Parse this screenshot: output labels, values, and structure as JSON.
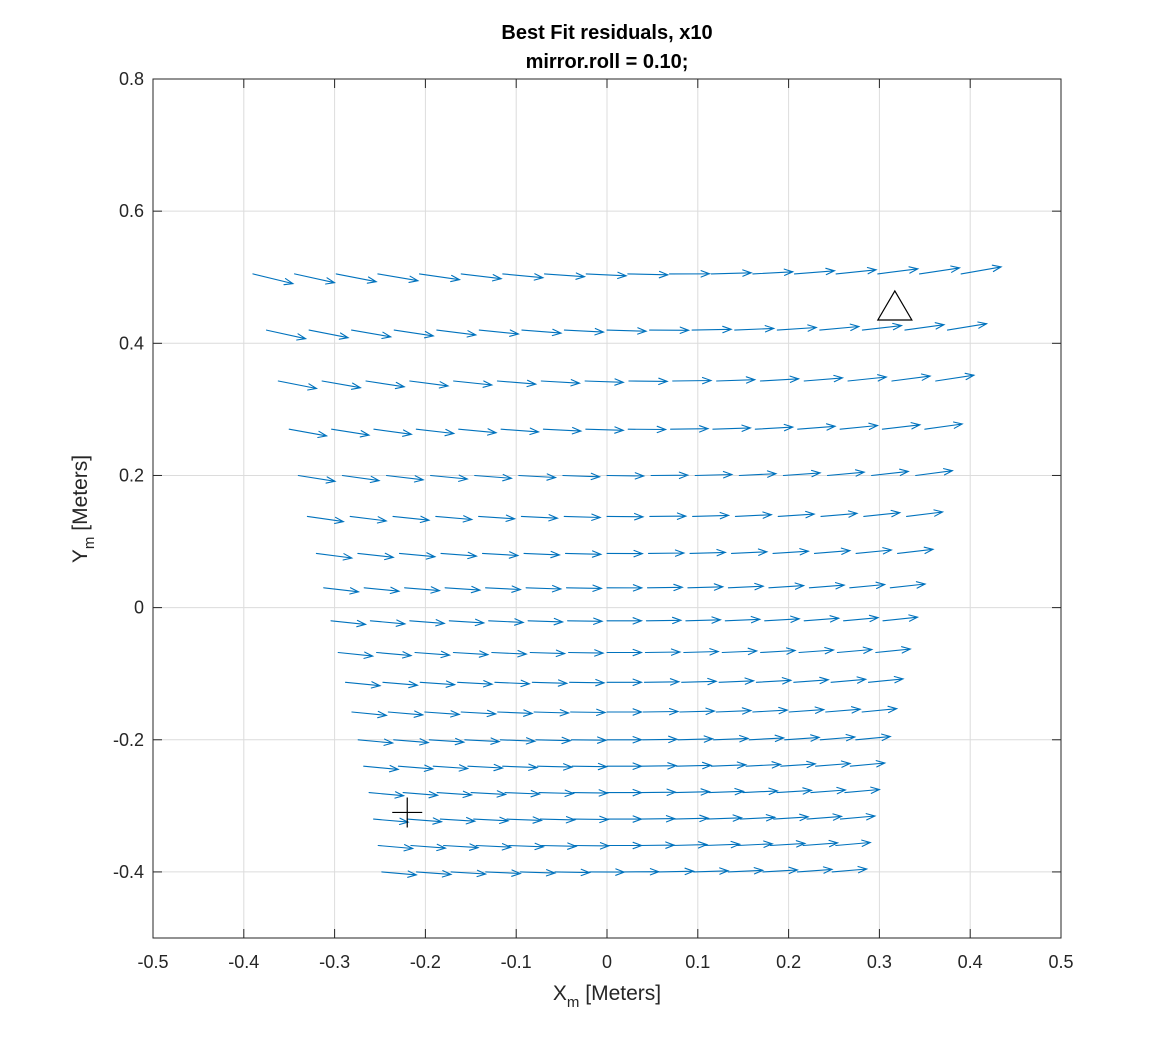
{
  "chart_data": {
    "type": "quiver",
    "title": [
      "Best Fit residuals, x10",
      "mirror.roll = 0.10;"
    ],
    "xlabel": {
      "main": "X",
      "sub": "m",
      "unit": " [Meters]"
    },
    "ylabel": {
      "main": "Y",
      "sub": "m",
      "unit": " [Meters]"
    },
    "xlim": [
      -0.5,
      0.5
    ],
    "ylim": [
      -0.5,
      0.8
    ],
    "xticks": [
      -0.5,
      -0.4,
      -0.3,
      -0.2,
      -0.1,
      0,
      0.1,
      0.2,
      0.3,
      0.4,
      0.5
    ],
    "xtick_labels": [
      "-0.5",
      "-0.4",
      "-0.3",
      "-0.2",
      "-0.1",
      "0",
      "0.1",
      "0.2",
      "0.3",
      "0.4",
      "0.5"
    ],
    "yticks": [
      -0.4,
      -0.2,
      0,
      0.2,
      0.4,
      0.6,
      0.8
    ],
    "ytick_labels": [
      "-0.4",
      "-0.2",
      "0",
      "0.2",
      "0.4",
      "0.6",
      "0.8"
    ],
    "grid": true,
    "arrow_color": "#0072BD",
    "marker_color": "#000000",
    "rows": [
      {
        "y": 0.505,
        "x_start": -0.39,
        "x_end": 0.39,
        "n": 18
      },
      {
        "y": 0.42,
        "x_start": -0.375,
        "x_end": 0.375,
        "n": 17
      },
      {
        "y": 0.343,
        "x_start": -0.362,
        "x_end": 0.362,
        "n": 16
      },
      {
        "y": 0.27,
        "x_start": -0.35,
        "x_end": 0.35,
        "n": 16
      },
      {
        "y": 0.2,
        "x_start": -0.34,
        "x_end": 0.34,
        "n": 15
      },
      {
        "y": 0.138,
        "x_start": -0.33,
        "x_end": 0.33,
        "n": 15
      },
      {
        "y": 0.082,
        "x_start": -0.32,
        "x_end": 0.32,
        "n": 15
      },
      {
        "y": 0.03,
        "x_start": -0.312,
        "x_end": 0.312,
        "n": 15
      },
      {
        "y": -0.02,
        "x_start": -0.304,
        "x_end": 0.304,
        "n": 15
      },
      {
        "y": -0.068,
        "x_start": -0.296,
        "x_end": 0.296,
        "n": 15
      },
      {
        "y": -0.113,
        "x_start": -0.288,
        "x_end": 0.288,
        "n": 15
      },
      {
        "y": -0.158,
        "x_start": -0.281,
        "x_end": 0.281,
        "n": 15
      },
      {
        "y": -0.2,
        "x_start": -0.274,
        "x_end": 0.274,
        "n": 15
      },
      {
        "y": -0.24,
        "x_start": -0.268,
        "x_end": 0.268,
        "n": 15
      },
      {
        "y": -0.28,
        "x_start": -0.262,
        "x_end": 0.262,
        "n": 15
      },
      {
        "y": -0.32,
        "x_start": -0.257,
        "x_end": 0.257,
        "n": 15
      },
      {
        "y": -0.36,
        "x_start": -0.252,
        "x_end": 0.252,
        "n": 15
      },
      {
        "y": -0.4,
        "x_start": -0.248,
        "x_end": 0.248,
        "n": 14
      }
    ],
    "markers": [
      {
        "type": "triangle",
        "x": 0.317,
        "y": 0.455
      },
      {
        "type": "plus",
        "x": -0.22,
        "y": -0.31
      }
    ]
  }
}
